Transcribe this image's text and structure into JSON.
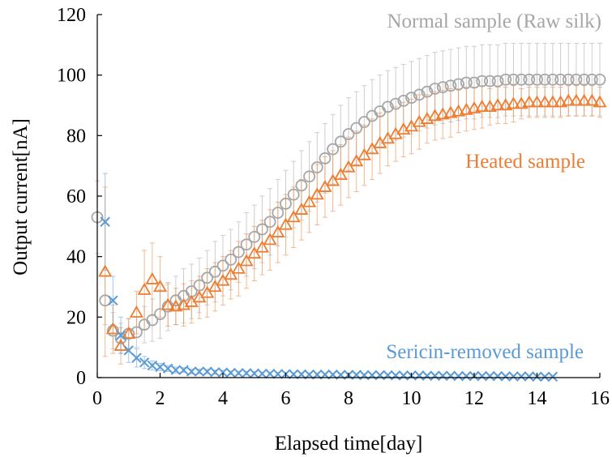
{
  "chart_data": {
    "type": "scatter",
    "xlabel": "Elapsed time[day]",
    "ylabel": "Output current[nA]",
    "xlim": [
      0,
      16
    ],
    "ylim": [
      0,
      120
    ],
    "xticks": [
      "0",
      "2",
      "4",
      "6",
      "8",
      "10",
      "12",
      "14",
      "16"
    ],
    "yticks": [
      "0",
      "20",
      "40",
      "60",
      "80",
      "100",
      "120"
    ],
    "grid": false,
    "legend": "inline labels",
    "series": [
      {
        "name": "Normal sample (Raw silk)",
        "color": "#a6a6a6",
        "marker": "circle",
        "x": [
          0,
          0.25,
          0.5,
          0.75,
          1,
          1.25,
          1.5,
          1.75,
          2,
          2.25,
          2.5,
          2.75,
          3,
          3.25,
          3.5,
          3.75,
          4,
          4.25,
          4.5,
          4.75,
          5,
          5.25,
          5.5,
          5.75,
          6,
          6.25,
          6.5,
          6.75,
          7,
          7.25,
          7.5,
          7.75,
          8,
          8.25,
          8.5,
          8.75,
          9,
          9.25,
          9.5,
          9.75,
          10,
          10.25,
          10.5,
          10.75,
          11,
          11.25,
          11.5,
          11.75,
          12,
          12.25,
          12.5,
          12.75,
          13,
          13.25,
          13.5,
          13.75,
          14,
          14.25,
          14.5,
          14.75,
          15,
          15.25,
          15.5,
          15.75,
          16
        ],
        "y": [
          53,
          25.5,
          15.5,
          13,
          14.5,
          15,
          17.5,
          19,
          21,
          23.5,
          25.5,
          27,
          28.5,
          30.5,
          33,
          35,
          37,
          39,
          41.5,
          44,
          46.5,
          49,
          51.5,
          54.5,
          57.5,
          60.5,
          63.5,
          66.5,
          69.5,
          72.5,
          75.5,
          78,
          80.5,
          82.5,
          84.5,
          86.5,
          88,
          89.5,
          90.5,
          91.5,
          92.5,
          93.5,
          94.5,
          95.5,
          96,
          96.5,
          97,
          97.5,
          97.5,
          98,
          98,
          98,
          98.5,
          98.5,
          98.5,
          98.5,
          98.5,
          98.5,
          98.5,
          98.5,
          98.5,
          98.5,
          98.5,
          98.5,
          98.5
        ],
        "err": [
          12,
          8,
          6,
          5,
          5,
          5,
          6,
          7,
          8,
          8,
          8,
          9,
          9,
          9,
          9,
          10,
          10,
          10,
          10,
          10.5,
          10.5,
          11,
          11,
          11,
          11,
          11,
          11.5,
          11.5,
          11.5,
          11.5,
          11.5,
          12,
          12,
          12,
          12,
          12,
          12,
          12,
          12,
          12,
          12,
          12,
          12,
          12,
          12,
          12,
          12,
          12,
          12,
          12,
          12,
          12,
          12,
          12,
          12,
          12,
          12,
          12,
          12,
          12,
          12,
          12,
          12,
          12,
          12
        ]
      },
      {
        "name": "Heated sample",
        "color": "#ed7d31",
        "marker": "triangle",
        "x": [
          0.25,
          0.5,
          0.75,
          1,
          1.25,
          1.5,
          1.75,
          2,
          2.25,
          2.5,
          2.75,
          3,
          3.25,
          3.5,
          3.75,
          4,
          4.25,
          4.5,
          4.75,
          5,
          5.25,
          5.5,
          5.75,
          6,
          6.25,
          6.5,
          6.75,
          7,
          7.25,
          7.5,
          7.75,
          8,
          8.25,
          8.5,
          8.75,
          9,
          9.25,
          9.5,
          9.75,
          10,
          10.25,
          10.5,
          10.75,
          11,
          11.25,
          11.5,
          11.75,
          12,
          12.25,
          12.5,
          12.75,
          13,
          13.25,
          13.5,
          13.75,
          14,
          14.25,
          14.5,
          14.75,
          15,
          15.25,
          15.5,
          15.75,
          16
        ],
        "y": [
          35,
          16,
          10.5,
          14.5,
          21.5,
          29,
          32.5,
          30,
          24,
          23.5,
          24,
          25,
          26.5,
          28,
          30,
          32,
          34,
          36,
          38.5,
          41,
          43,
          45.5,
          48,
          50.5,
          53,
          55.5,
          58,
          60.5,
          63,
          65,
          67,
          69.5,
          71.5,
          73.5,
          75.5,
          77.5,
          79,
          80.5,
          82,
          83,
          84.5,
          85.5,
          86.5,
          87,
          87.5,
          88,
          88.5,
          89,
          89.5,
          89.5,
          90,
          90,
          90.5,
          90.5,
          91,
          91,
          91,
          91,
          91,
          91.5,
          91.5,
          91.5,
          91.5,
          91
        ],
        "err": [
          28,
          8,
          6,
          5,
          7,
          13,
          12,
          10,
          7,
          6,
          7,
          7,
          7,
          8,
          8,
          8,
          8,
          9,
          9,
          9,
          9,
          10,
          10,
          10,
          10,
          10,
          10,
          10,
          10,
          10,
          10,
          10,
          10,
          10,
          10,
          10,
          9,
          9,
          9,
          9,
          9,
          8,
          8,
          8,
          8,
          7,
          7,
          7,
          7,
          6,
          6,
          6,
          6,
          5,
          5,
          5,
          5,
          5,
          5,
          5,
          5,
          5,
          5,
          5
        ]
      },
      {
        "name": "Sericin-removed sample",
        "color": "#5b9bd5",
        "marker": "x",
        "x": [
          0.25,
          0.5,
          0.75,
          1,
          1.25,
          1.5,
          1.75,
          2,
          2.25,
          2.5,
          2.75,
          3,
          3.25,
          3.5,
          3.75,
          4,
          4.25,
          4.5,
          4.75,
          5,
          5.25,
          5.5,
          5.75,
          6,
          6.25,
          6.5,
          6.75,
          7,
          7.25,
          7.5,
          7.75,
          8,
          8.25,
          8.5,
          8.75,
          9,
          9.25,
          9.5,
          9.75,
          10,
          10.25,
          10.5,
          10.75,
          11,
          11.25,
          11.5,
          11.75,
          12,
          12.25,
          12.5,
          12.75,
          13,
          13.25,
          13.5,
          13.75,
          14,
          14.25,
          14.5
        ],
        "y": [
          51.5,
          25.5,
          14,
          9,
          6.5,
          5,
          4,
          3.5,
          3,
          2.5,
          2.5,
          2,
          2,
          2,
          1.8,
          1.7,
          1.6,
          1.5,
          1.5,
          1.4,
          1.3,
          1.3,
          1.2,
          1.2,
          1.1,
          1.1,
          1,
          1,
          1,
          1,
          0.9,
          0.9,
          0.9,
          0.8,
          0.8,
          0.8,
          0.8,
          0.7,
          0.7,
          0.7,
          0.7,
          0.6,
          0.6,
          0.6,
          0.6,
          0.5,
          0.5,
          0.5,
          0.5,
          0.5,
          0.5,
          0.4,
          0.4,
          0.4,
          0.4,
          0.3,
          0.3,
          0.3
        ],
        "err": [
          16,
          8,
          6,
          4,
          3,
          2,
          1.5,
          1.2,
          1,
          1,
          0.8,
          0.8,
          0.8,
          0.7,
          0.7,
          0.7,
          0.6,
          0.6,
          0.6,
          0.6,
          0.5,
          0.5,
          0.5,
          0.5,
          0.5,
          0.5,
          0.5,
          0.5,
          0.4,
          0.4,
          0.4,
          0.4,
          0.4,
          0.4,
          0.4,
          0.4,
          0.4,
          0.4,
          0.3,
          0.3,
          0.3,
          0.3,
          0.3,
          0.3,
          0.3,
          0.3,
          0.3,
          0.3,
          0.3,
          0.3,
          0.3,
          0.3,
          0.3,
          0.3,
          0.3,
          0.3,
          0.3,
          0.3
        ]
      }
    ]
  }
}
